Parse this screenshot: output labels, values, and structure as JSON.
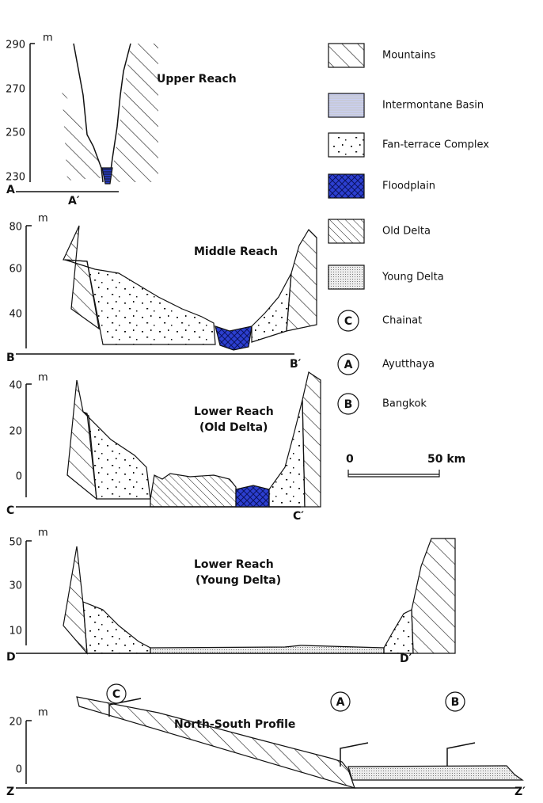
{
  "panels": [
    {
      "title": [
        "Upper Reach"
      ],
      "unit": "m",
      "ticks": [
        "290",
        "270",
        "250",
        "230"
      ],
      "start": "A",
      "end": "A′"
    },
    {
      "title": [
        "Middle Reach"
      ],
      "unit": "m",
      "ticks": [
        "80",
        "60",
        "40"
      ],
      "start": "B",
      "end": "B′"
    },
    {
      "title": [
        "Lower Reach",
        "(Old Delta)"
      ],
      "unit": "m",
      "ticks": [
        "40",
        "20",
        "0"
      ],
      "start": "C",
      "end": "C′"
    },
    {
      "title": [
        "Lower Reach",
        "(Young Delta)"
      ],
      "unit": "m",
      "ticks": [
        "50",
        "30",
        "10"
      ],
      "start": "D",
      "end": "D′"
    },
    {
      "title": [
        "North-South Profile"
      ],
      "unit": "m",
      "ticks": [
        "20",
        "0"
      ],
      "start": "Z",
      "end": "Z′"
    }
  ],
  "profile_markers": [
    "C",
    "A",
    "B"
  ],
  "legend": {
    "swatches": [
      "Mountains",
      "Intermontane Basin",
      "Fan-terrace Complex",
      "Floodplain",
      "Old Delta",
      "Young Delta"
    ],
    "places": [
      {
        "symbol": "C",
        "name": "Chainat"
      },
      {
        "symbol": "A",
        "name": "Ayutthaya"
      },
      {
        "symbol": "B",
        "name": "Bangkok"
      }
    ]
  },
  "scale": {
    "start": "0",
    "end": "50 km"
  }
}
